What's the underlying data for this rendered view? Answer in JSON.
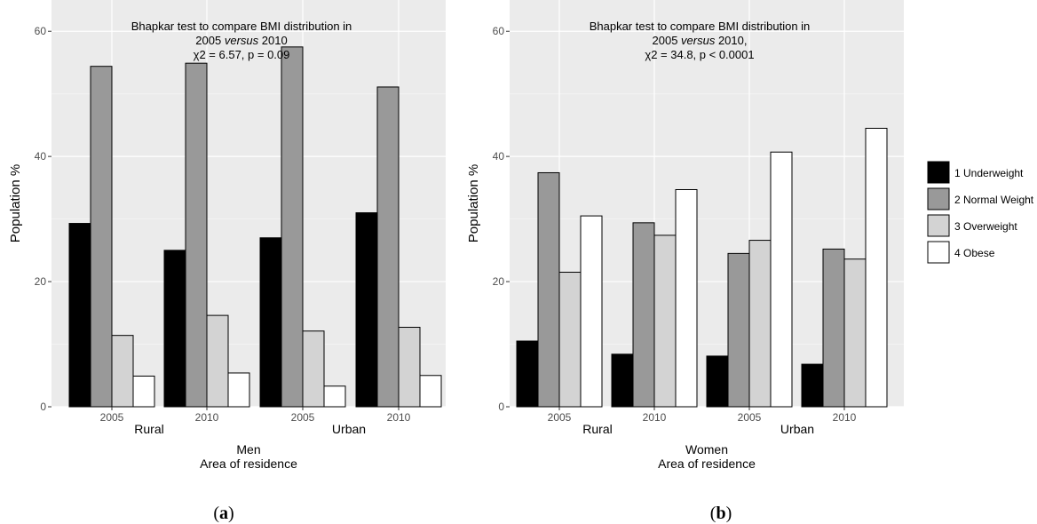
{
  "chart_data": [
    {
      "type": "bar",
      "panel_label": "a",
      "title_lines": [
        {
          "parts": [
            {
              "text": "Bhapkar test to compare BMI distribution in",
              "italic": false
            }
          ]
        },
        {
          "parts": [
            {
              "text": "2005 ",
              "italic": false
            },
            {
              "text": "versus",
              "italic": true
            },
            {
              "text": " 2010",
              "italic": false
            }
          ]
        },
        {
          "parts": [
            {
              "text": "χ2 = 6.57, p = 0.09",
              "italic": false
            }
          ]
        }
      ],
      "xlabel_lines": [
        "Men",
        "Area of residence"
      ],
      "ylabel": "Population %",
      "ylim": [
        0,
        65
      ],
      "yticks": [
        0,
        20,
        40,
        60
      ],
      "categories": [
        "2005",
        "2010",
        "2005",
        "2010"
      ],
      "groups": [
        {
          "label": "Rural",
          "span": [
            0,
            1
          ]
        },
        {
          "label": "Urban",
          "span": [
            2,
            3
          ]
        }
      ],
      "grid": true,
      "series": [
        {
          "name": "1 Underweight",
          "values": [
            29.3,
            25.0,
            27.0,
            31.0
          ]
        },
        {
          "name": "2 Normal Weight",
          "values": [
            54.4,
            54.9,
            57.5,
            51.1
          ]
        },
        {
          "name": "3 Overweight",
          "values": [
            11.4,
            14.6,
            12.1,
            12.7
          ]
        },
        {
          "name": "4 Obese",
          "values": [
            4.9,
            5.4,
            3.3,
            5.0
          ]
        }
      ]
    },
    {
      "type": "bar",
      "panel_label": "b",
      "title_lines": [
        {
          "parts": [
            {
              "text": "Bhapkar test to compare BMI distribution in",
              "italic": false
            }
          ]
        },
        {
          "parts": [
            {
              "text": "2005 ",
              "italic": false
            },
            {
              "text": "versus",
              "italic": true
            },
            {
              "text": " 2010,",
              "italic": false
            }
          ]
        },
        {
          "parts": [
            {
              "text": "χ2 = 34.8, p < 0.0001",
              "italic": false
            }
          ]
        }
      ],
      "xlabel_lines": [
        "Women",
        "Area of residence"
      ],
      "ylabel": "Population %",
      "ylim": [
        0,
        65
      ],
      "yticks": [
        0,
        20,
        40,
        60
      ],
      "categories": [
        "2005",
        "2010",
        "2005",
        "2010"
      ],
      "groups": [
        {
          "label": "Rural",
          "span": [
            0,
            1
          ]
        },
        {
          "label": "Urban",
          "span": [
            2,
            3
          ]
        }
      ],
      "grid": true,
      "series": [
        {
          "name": "1 Underweight",
          "values": [
            10.5,
            8.4,
            8.1,
            6.8
          ]
        },
        {
          "name": "2 Normal Weight",
          "values": [
            37.4,
            29.4,
            24.5,
            25.2
          ]
        },
        {
          "name": "3 Overweight",
          "values": [
            21.5,
            27.4,
            26.6,
            23.6
          ]
        },
        {
          "name": "4 Obese",
          "values": [
            30.5,
            34.7,
            40.7,
            44.5
          ]
        }
      ]
    }
  ],
  "legend": {
    "placement": "right",
    "entries": [
      {
        "name": "1 Underweight",
        "color": "#000000"
      },
      {
        "name": "2 Normal Weight",
        "color": "#999999"
      },
      {
        "name": "3 Overweight",
        "color": "#d3d3d3"
      },
      {
        "name": "4 Obese",
        "color": "#ffffff"
      }
    ]
  },
  "colors": {
    "panel_background": "#ebebeb",
    "grid_major": "#ffffff",
    "bar_outline": "#000000",
    "axis_text": "#4d4d4d"
  }
}
